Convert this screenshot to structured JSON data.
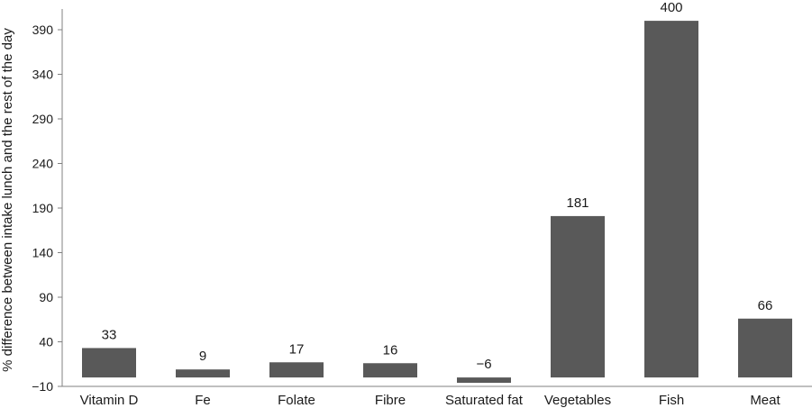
{
  "chart_data": {
    "type": "bar",
    "title": "",
    "xlabel": "",
    "ylabel": "% difference between intake lunch and the rest of the day",
    "categories": [
      "Vitamin D",
      "Fe",
      "Folate",
      "Fibre",
      "Saturated fat",
      "Vegetables",
      "Fish",
      "Meat"
    ],
    "values": [
      33,
      9,
      17,
      16,
      -6,
      181,
      400,
      66
    ],
    "data_labels": [
      "33",
      "9",
      "17",
      "16",
      "−6",
      "181",
      "400",
      "66"
    ],
    "yticks": [
      -10,
      40,
      90,
      140,
      190,
      240,
      290,
      340,
      390
    ],
    "ytick_labels": [
      "−10",
      "40",
      "90",
      "140",
      "190",
      "240",
      "290",
      "340",
      "390"
    ],
    "ylim": [
      -10,
      400
    ],
    "grid": false,
    "bar_color": "#595959",
    "axis_color": "#808080"
  }
}
